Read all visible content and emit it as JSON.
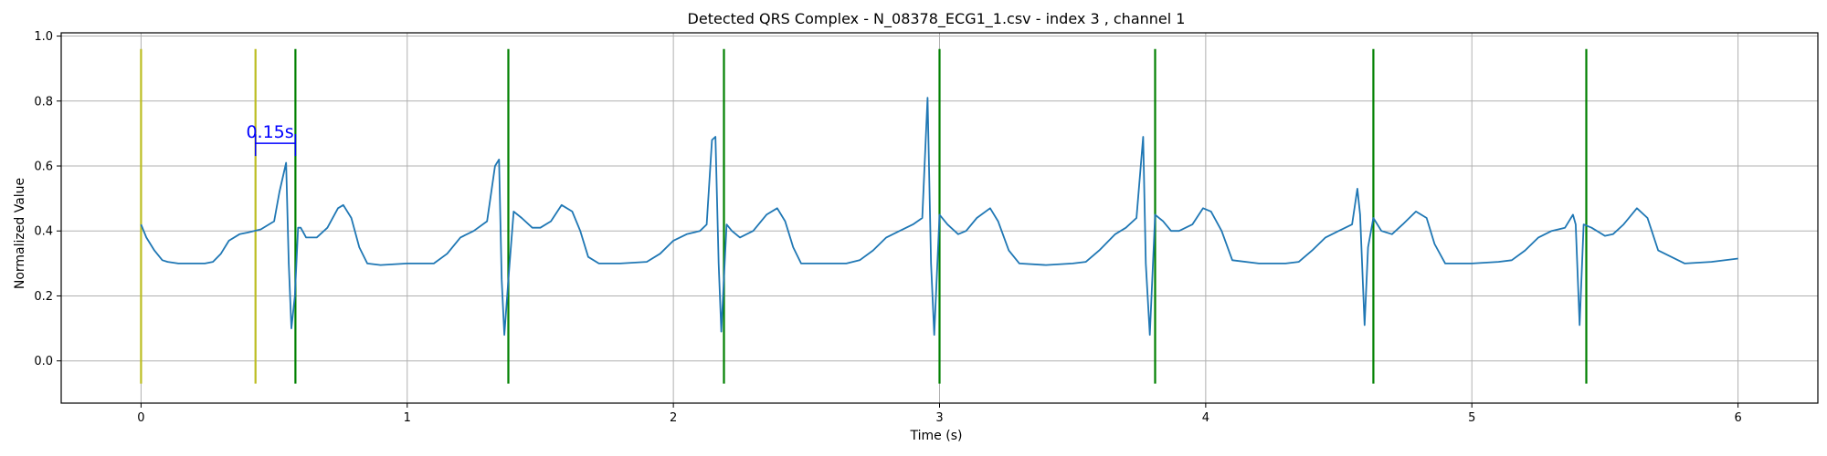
{
  "chart_data": {
    "type": "line",
    "title": "Detected QRS Complex - N_08378_ECG1_1.csv - index 3 , channel 1",
    "xlabel": "Time (s)",
    "ylabel": "Normalized Value",
    "xlim": [
      -0.3,
      6.3
    ],
    "ylim": [
      -0.13,
      1.01
    ],
    "xticks": [
      0,
      1,
      2,
      3,
      4,
      5,
      6
    ],
    "yticks": [
      0.0,
      0.2,
      0.4,
      0.6,
      0.8,
      1.0
    ],
    "xtick_labels": [
      "0",
      "1",
      "2",
      "3",
      "4",
      "5",
      "6"
    ],
    "ytick_labels": [
      "0.0",
      "0.2",
      "0.4",
      "0.6",
      "0.8",
      "1.0"
    ],
    "grid": true,
    "colors": {
      "signal": "#1f77b4",
      "window": "#bcbd22",
      "qrs": "#008000",
      "annotation": "#0000ff",
      "grid": "#b0b0b0"
    },
    "series": [
      {
        "x": [
          0,
          0.02,
          0.05,
          0.08,
          0.1,
          0.14,
          0.2,
          0.24,
          0.27,
          0.3,
          0.33,
          0.37,
          0.4,
          0.45,
          0.5,
          0.52,
          0.545,
          0.555,
          0.565,
          0.578,
          0.59,
          0.6,
          0.62,
          0.66,
          0.7,
          0.74,
          0.76,
          0.79,
          0.82,
          0.85,
          0.9,
          1.0,
          1.1,
          1.15,
          1.2,
          1.25,
          1.3,
          1.33,
          1.345,
          1.355,
          1.365,
          1.38,
          1.4,
          1.43,
          1.47,
          1.5,
          1.54,
          1.58,
          1.62,
          1.65,
          1.68,
          1.72,
          1.8,
          1.9,
          1.95,
          2.0,
          2.05,
          2.1,
          2.125,
          2.145,
          2.158,
          2.17,
          2.18,
          2.2,
          2.22,
          2.25,
          2.3,
          2.35,
          2.39,
          2.42,
          2.45,
          2.48,
          2.55,
          2.65,
          2.7,
          2.75,
          2.8,
          2.85,
          2.9,
          2.935,
          2.955,
          2.968,
          2.98,
          3.0,
          3.03,
          3.07,
          3.1,
          3.14,
          3.19,
          3.22,
          3.26,
          3.3,
          3.4,
          3.5,
          3.55,
          3.6,
          3.66,
          3.7,
          3.74,
          3.765,
          3.775,
          3.79,
          3.81,
          3.84,
          3.87,
          3.9,
          3.95,
          3.99,
          4.02,
          4.06,
          4.1,
          4.2,
          4.3,
          4.35,
          4.4,
          4.45,
          4.5,
          4.55,
          4.57,
          4.58,
          4.597,
          4.61,
          4.63,
          4.66,
          4.7,
          4.74,
          4.79,
          4.83,
          4.86,
          4.9,
          5.0,
          5.1,
          5.15,
          5.2,
          5.25,
          5.3,
          5.35,
          5.38,
          5.39,
          5.405,
          5.42,
          5.45,
          5.5,
          5.53,
          5.57,
          5.62,
          5.66,
          5.7,
          5.8,
          5.9,
          6.0
        ],
        "values": [
          0.42,
          0.38,
          0.34,
          0.31,
          0.305,
          0.3,
          0.3,
          0.3,
          0.305,
          0.33,
          0.37,
          0.39,
          0.395,
          0.405,
          0.43,
          0.52,
          0.61,
          0.3,
          0.1,
          0.2,
          0.41,
          0.41,
          0.38,
          0.38,
          0.41,
          0.47,
          0.48,
          0.44,
          0.35,
          0.3,
          0.295,
          0.3,
          0.3,
          0.33,
          0.38,
          0.4,
          0.43,
          0.6,
          0.62,
          0.25,
          0.08,
          0.25,
          0.46,
          0.44,
          0.41,
          0.41,
          0.43,
          0.48,
          0.46,
          0.4,
          0.32,
          0.3,
          0.3,
          0.305,
          0.33,
          0.37,
          0.39,
          0.4,
          0.42,
          0.68,
          0.69,
          0.3,
          0.09,
          0.42,
          0.4,
          0.38,
          0.4,
          0.45,
          0.47,
          0.43,
          0.35,
          0.3,
          0.3,
          0.3,
          0.31,
          0.34,
          0.38,
          0.4,
          0.42,
          0.44,
          0.81,
          0.3,
          0.08,
          0.45,
          0.42,
          0.39,
          0.4,
          0.44,
          0.47,
          0.43,
          0.34,
          0.3,
          0.295,
          0.3,
          0.305,
          0.34,
          0.39,
          0.41,
          0.44,
          0.69,
          0.3,
          0.08,
          0.45,
          0.43,
          0.4,
          0.4,
          0.42,
          0.47,
          0.46,
          0.4,
          0.31,
          0.3,
          0.3,
          0.305,
          0.34,
          0.38,
          0.4,
          0.42,
          0.53,
          0.45,
          0.11,
          0.35,
          0.44,
          0.4,
          0.39,
          0.42,
          0.46,
          0.44,
          0.36,
          0.3,
          0.3,
          0.305,
          0.31,
          0.34,
          0.38,
          0.4,
          0.41,
          0.45,
          0.42,
          0.11,
          0.42,
          0.41,
          0.385,
          0.39,
          0.42,
          0.47,
          0.44,
          0.34,
          0.3,
          0.305,
          0.315
        ]
      }
    ],
    "vertical_lines": [
      {
        "kind": "window",
        "x": 0.0
      },
      {
        "kind": "window",
        "x": 0.43
      },
      {
        "kind": "qrs",
        "x": 0.58
      },
      {
        "kind": "qrs",
        "x": 1.38
      },
      {
        "kind": "qrs",
        "x": 2.19
      },
      {
        "kind": "qrs",
        "x": 3.0
      },
      {
        "kind": "qrs",
        "x": 3.81
      },
      {
        "kind": "qrs",
        "x": 4.63
      },
      {
        "kind": "qrs",
        "x": 5.43
      }
    ],
    "vertical_line_range": [
      -0.07,
      0.96
    ],
    "annotation": {
      "text": "0.15s",
      "x_start": 0.43,
      "x_end": 0.58,
      "y": 0.67
    }
  }
}
